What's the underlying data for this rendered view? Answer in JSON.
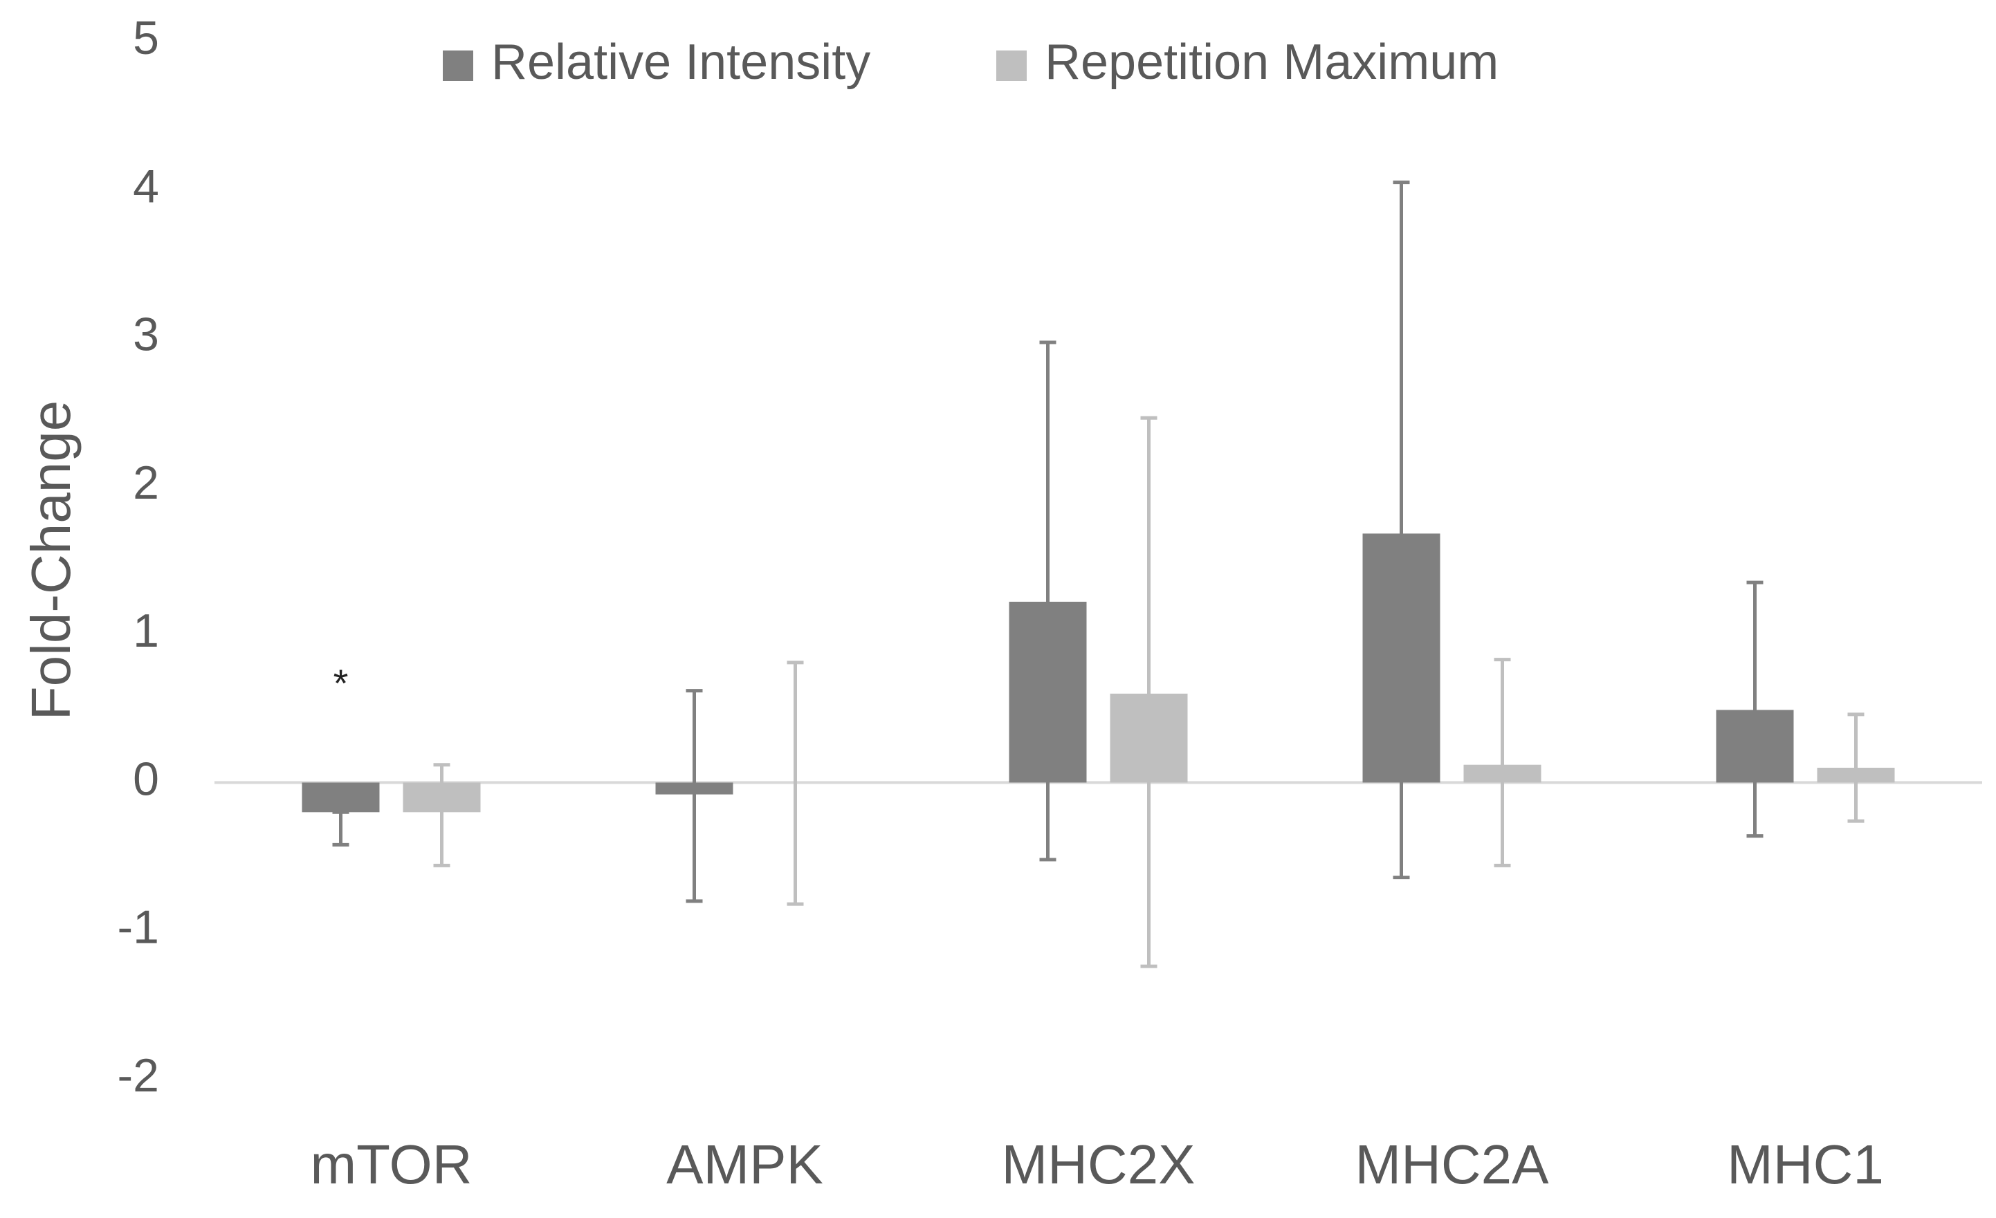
{
  "chart_data": {
    "type": "bar",
    "title": "",
    "xlabel": "",
    "ylabel": "Fold-Change",
    "ylim": [
      -2,
      5
    ],
    "yticks": [
      -2,
      -1,
      0,
      1,
      2,
      3,
      4,
      5
    ],
    "grid": false,
    "legend_position": "top-center",
    "categories": [
      "mTOR",
      "AMPK",
      "MHC2X",
      "MHC2A",
      "MHC1"
    ],
    "series": [
      {
        "name": "Relative Intensity",
        "color": "#808080",
        "values": [
          -0.2,
          -0.08,
          1.22,
          1.68,
          0.49
        ],
        "error_upper": [
          -0.2,
          0.62,
          2.97,
          4.05,
          1.35
        ],
        "error_lower": [
          -0.42,
          -0.8,
          -0.52,
          -0.64,
          -0.36
        ]
      },
      {
        "name": "Repetition Maximum",
        "color": "#bfbfbf",
        "values": [
          -0.2,
          0.0,
          0.6,
          0.12,
          0.1
        ],
        "error_upper": [
          0.12,
          0.81,
          2.46,
          0.83,
          0.46
        ],
        "error_lower": [
          -0.56,
          -0.82,
          -1.24,
          -0.56,
          -0.26
        ]
      }
    ],
    "annotations": [
      {
        "text": "*",
        "category": "mTOR",
        "y": 0.65
      }
    ]
  }
}
